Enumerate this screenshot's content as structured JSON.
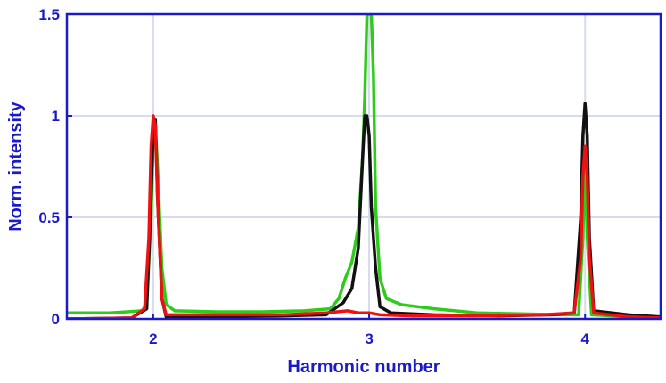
{
  "chart_data": {
    "type": "line",
    "title": "",
    "xlabel": "Harmonic number",
    "ylabel": "Norm. intensity",
    "xlim": [
      1.6,
      4.35
    ],
    "ylim": [
      0,
      1.5
    ],
    "xticks": [
      2,
      3,
      4
    ],
    "xtick_labels": [
      "2",
      "3",
      "4"
    ],
    "yticks": [
      0,
      0.5,
      1,
      1.5
    ],
    "ytick_labels": [
      "0",
      "0.5",
      "1",
      "1.5"
    ],
    "grid": true,
    "legend": "none",
    "colors": {
      "axis": "#1a1ac8",
      "grid": "#d4dcee"
    },
    "series": [
      {
        "color": "#2ecc1a",
        "points": [
          [
            1.6,
            0.03
          ],
          [
            1.8,
            0.03
          ],
          [
            1.95,
            0.04
          ],
          [
            1.97,
            0.08
          ],
          [
            1.99,
            0.5
          ],
          [
            2.0,
            0.9
          ],
          [
            2.01,
            0.95
          ],
          [
            2.02,
            0.75
          ],
          [
            2.04,
            0.25
          ],
          [
            2.06,
            0.07
          ],
          [
            2.1,
            0.04
          ],
          [
            2.3,
            0.035
          ],
          [
            2.5,
            0.035
          ],
          [
            2.7,
            0.04
          ],
          [
            2.82,
            0.05
          ],
          [
            2.86,
            0.1
          ],
          [
            2.89,
            0.2
          ],
          [
            2.92,
            0.28
          ],
          [
            2.95,
            0.45
          ],
          [
            2.97,
            0.8
          ],
          [
            2.98,
            1.1
          ],
          [
            2.99,
            1.5
          ],
          [
            3.0,
            1.5
          ],
          [
            3.01,
            1.5
          ],
          [
            3.02,
            1.2
          ],
          [
            3.03,
            0.55
          ],
          [
            3.05,
            0.2
          ],
          [
            3.08,
            0.1
          ],
          [
            3.15,
            0.07
          ],
          [
            3.3,
            0.05
          ],
          [
            3.5,
            0.03
          ],
          [
            3.7,
            0.025
          ],
          [
            3.9,
            0.02
          ],
          [
            3.97,
            0.02
          ],
          [
            3.99,
            0.4
          ],
          [
            4.0,
            0.8
          ],
          [
            4.01,
            0.4
          ],
          [
            4.03,
            0.02
          ],
          [
            4.2,
            0.01
          ],
          [
            4.35,
            0.01
          ]
        ]
      },
      {
        "color": "#111111",
        "points": [
          [
            1.6,
            0.0
          ],
          [
            1.9,
            0.005
          ],
          [
            1.97,
            0.05
          ],
          [
            1.99,
            0.6
          ],
          [
            2.0,
            0.95
          ],
          [
            2.01,
            0.98
          ],
          [
            2.02,
            0.6
          ],
          [
            2.04,
            0.1
          ],
          [
            2.06,
            0.01
          ],
          [
            2.3,
            0.01
          ],
          [
            2.6,
            0.015
          ],
          [
            2.8,
            0.02
          ],
          [
            2.88,
            0.08
          ],
          [
            2.92,
            0.15
          ],
          [
            2.95,
            0.35
          ],
          [
            2.97,
            0.8
          ],
          [
            2.98,
            1.0
          ],
          [
            2.99,
            1.0
          ],
          [
            3.0,
            0.9
          ],
          [
            3.01,
            0.55
          ],
          [
            3.03,
            0.25
          ],
          [
            3.05,
            0.06
          ],
          [
            3.1,
            0.03
          ],
          [
            3.3,
            0.02
          ],
          [
            3.6,
            0.015
          ],
          [
            3.85,
            0.02
          ],
          [
            3.95,
            0.03
          ],
          [
            3.98,
            0.5
          ],
          [
            3.99,
            0.9
          ],
          [
            4.0,
            1.06
          ],
          [
            4.01,
            0.9
          ],
          [
            4.02,
            0.4
          ],
          [
            4.04,
            0.04
          ],
          [
            4.2,
            0.02
          ],
          [
            4.35,
            0.01
          ]
        ]
      },
      {
        "color": "#ee1111",
        "points": [
          [
            1.6,
            0.0
          ],
          [
            1.9,
            0.005
          ],
          [
            1.96,
            0.05
          ],
          [
            1.98,
            0.4
          ],
          [
            1.99,
            0.85
          ],
          [
            2.0,
            1.0
          ],
          [
            2.01,
            0.95
          ],
          [
            2.02,
            0.6
          ],
          [
            2.04,
            0.1
          ],
          [
            2.06,
            0.02
          ],
          [
            2.3,
            0.02
          ],
          [
            2.6,
            0.02
          ],
          [
            2.8,
            0.03
          ],
          [
            2.9,
            0.04
          ],
          [
            2.95,
            0.03
          ],
          [
            3.0,
            0.03
          ],
          [
            3.05,
            0.02
          ],
          [
            3.2,
            0.015
          ],
          [
            3.5,
            0.015
          ],
          [
            3.8,
            0.02
          ],
          [
            3.95,
            0.03
          ],
          [
            3.98,
            0.3
          ],
          [
            3.99,
            0.7
          ],
          [
            4.0,
            0.85
          ],
          [
            4.01,
            0.7
          ],
          [
            4.02,
            0.3
          ],
          [
            4.04,
            0.03
          ],
          [
            4.2,
            0.01
          ],
          [
            4.35,
            0.005
          ]
        ]
      }
    ]
  }
}
